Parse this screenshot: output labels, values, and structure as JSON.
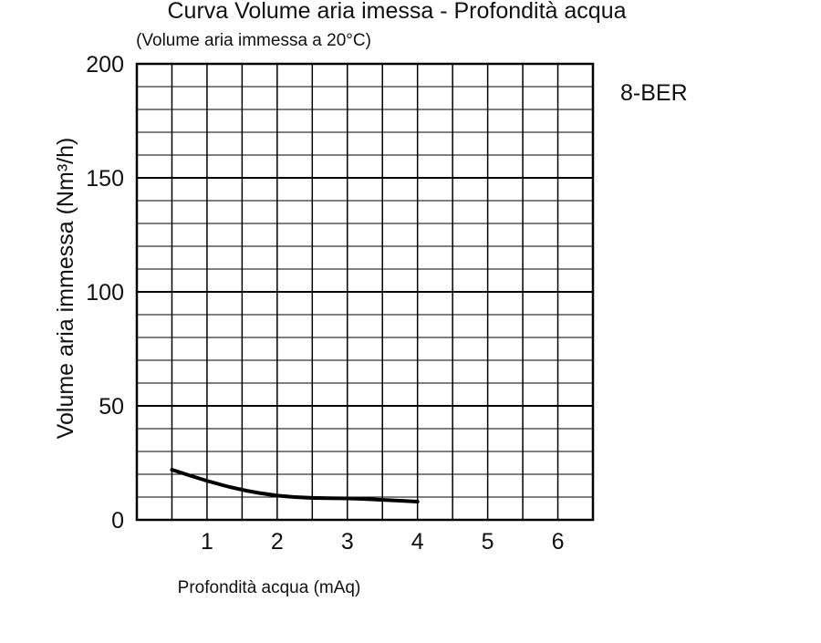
{
  "chart_data": {
    "type": "line",
    "title": "Curva Volume aria imessa - Profondità acqua",
    "subtitle": "(Volume aria immessa a 20°C)",
    "xlabel": "Profondità acqua (mAq)",
    "ylabel": "Volume aria immessa (Nm³/h)",
    "annotation": "8-BER",
    "xlim": [
      0,
      6.5
    ],
    "ylim": [
      0,
      200
    ],
    "x_ticks": [
      "1",
      "2",
      "3",
      "4",
      "5",
      "6"
    ],
    "y_ticks": [
      "0",
      "50",
      "100",
      "150",
      "200"
    ],
    "grid": true,
    "legend": "none",
    "series": [
      {
        "color": "#000000",
        "x": [
          0.5,
          1.0,
          1.5,
          2.0,
          2.5,
          3.0,
          3.5,
          4.0
        ],
        "y": [
          22,
          17,
          13,
          10.5,
          9.5,
          9.5,
          8.8,
          8
        ]
      }
    ]
  }
}
